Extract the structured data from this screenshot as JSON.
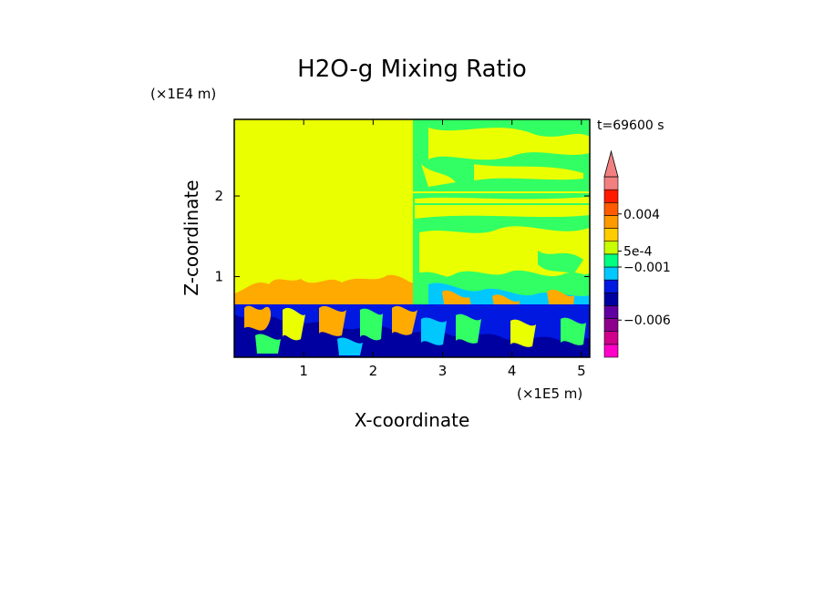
{
  "chart_data": {
    "type": "heatmap",
    "title": "H2O-g Mixing Ratio",
    "xlabel": "X-coordinate",
    "ylabel": "Z-coordinate",
    "x_scale_label": "(×1E5 m)",
    "y_scale_label": "(×1E4 m)",
    "time_label": "t=69600 s",
    "xlim": [
      0,
      5.12
    ],
    "ylim": [
      0,
      2.95
    ],
    "x_ticks": [
      1,
      2,
      3,
      4,
      5
    ],
    "x_tick_labels": [
      "1",
      "2",
      "3",
      "4",
      "5"
    ],
    "y_ticks": [
      1,
      2
    ],
    "y_tick_labels": [
      "1",
      "2"
    ],
    "colorbar": {
      "colors": [
        "#ff00c8",
        "#d0008c",
        "#8c008c",
        "#6000a0",
        "#0000a0",
        "#0018e0",
        "#00c8ff",
        "#00ff80",
        "#c8ff00",
        "#ffcc00",
        "#ff9900",
        "#ff5a00",
        "#ff1a00",
        "#f28080"
      ],
      "labels": [
        {
          "text": "0.004",
          "value": 0.004
        },
        {
          "text": "5e-4",
          "value": 0.0005
        },
        {
          "text": "−0.001",
          "value": -0.001
        },
        {
          "text": "−0.006",
          "value": -0.006
        }
      ],
      "extend_top": true
    },
    "regions": {
      "upper_left_value": "yellow band",
      "upper_right_value": "green band",
      "lower_layer_value": "blue band"
    }
  }
}
